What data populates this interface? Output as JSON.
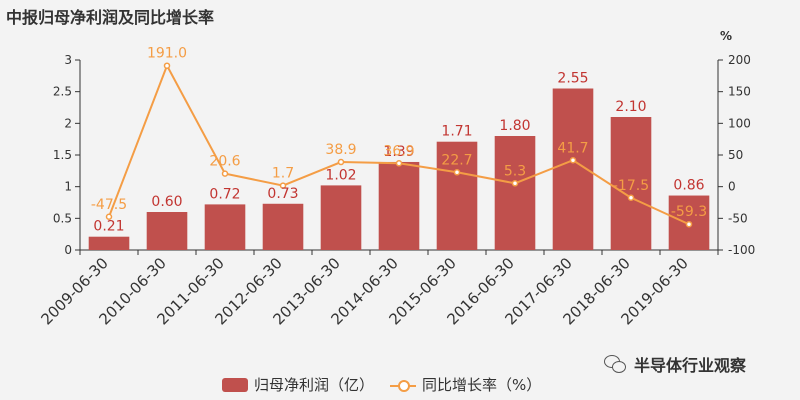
{
  "chart_data": {
    "type": "bar",
    "title": "中报归母净利润及同比增长率",
    "categories": [
      "2009-06-30",
      "2010-06-30",
      "2011-06-30",
      "2012-06-30",
      "2013-06-30",
      "2014-06-30",
      "2015-06-30",
      "2016-06-30",
      "2017-06-30",
      "2018-06-30",
      "2019-06-30"
    ],
    "series": [
      {
        "name": "归母净利润（亿）",
        "type": "bar",
        "axis": "left",
        "color": "#c0504d",
        "values": [
          0.21,
          0.6,
          0.72,
          0.73,
          1.02,
          1.39,
          1.71,
          1.8,
          2.55,
          2.1,
          0.86
        ],
        "labels": [
          "0.21",
          "0.60",
          "0.72",
          "0.73",
          "1.02",
          "1.39",
          "1.71",
          "1.80",
          "2.55",
          "2.10",
          "0.86"
        ]
      },
      {
        "name": "同比增长率（%）",
        "type": "line",
        "axis": "right",
        "color": "#f49d45",
        "values": [
          -47.5,
          191.0,
          20.6,
          1.7,
          38.9,
          36.9,
          22.7,
          5.3,
          41.7,
          -17.5,
          -59.3
        ],
        "labels": [
          "-47.5",
          "191.0",
          "20.6",
          "1.7",
          "38.9",
          "36.9",
          "22.7",
          "5.3",
          "41.7",
          "-17.5",
          "-59.3"
        ]
      }
    ],
    "left_axis": {
      "ylim": [
        0,
        3
      ],
      "ticks": [
        "0",
        "0.5",
        "1",
        "1.5",
        "2",
        "2.5",
        "3"
      ]
    },
    "right_axis": {
      "unit": "%",
      "ylim": [
        -100,
        200
      ],
      "ticks": [
        "-100",
        "-50",
        "0",
        "50",
        "100",
        "150",
        "200"
      ]
    },
    "legend": {
      "placement": "bottom",
      "items": [
        "归母净利润（亿）",
        "同比增长率（%）"
      ]
    },
    "grid": false
  },
  "watermark": {
    "text": "半导体行业观察",
    "icon": "wechat-icon"
  }
}
